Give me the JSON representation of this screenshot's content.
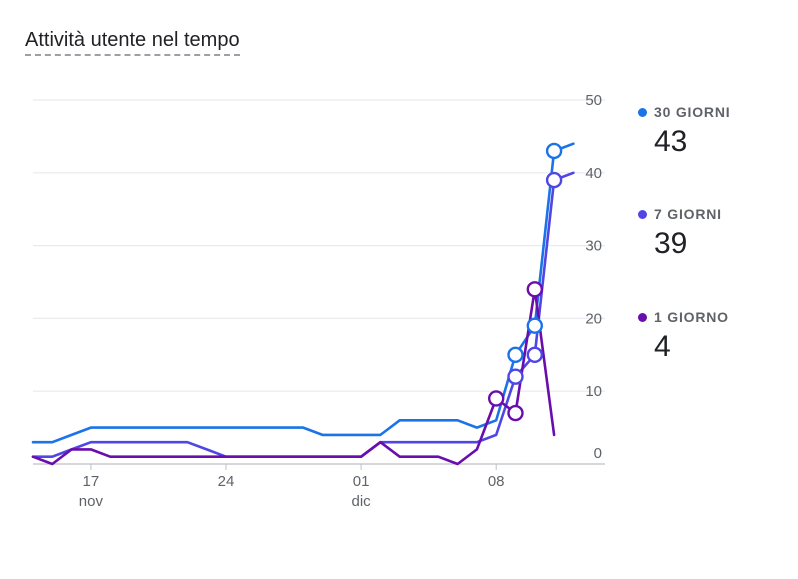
{
  "title": "Attività utente nel tempo",
  "legend": [
    {
      "label": "30 GIORNI",
      "value": "43",
      "color": "#1a73e8"
    },
    {
      "label": "7 GIORNI",
      "value": "39",
      "color": "#4f46e5"
    },
    {
      "label": "1 GIORNO",
      "value": "4",
      "color": "#6a0dad"
    }
  ],
  "chart_data": {
    "type": "line",
    "title": "Attività utente nel tempo",
    "x_start": "2024-11-14",
    "x_ticks": [
      {
        "date": "2024-11-17",
        "label": "17",
        "sublabel": "nov"
      },
      {
        "date": "2024-11-24",
        "label": "24",
        "sublabel": ""
      },
      {
        "date": "2024-12-01",
        "label": "01",
        "sublabel": "dic"
      },
      {
        "date": "2024-12-08",
        "label": "08",
        "sublabel": ""
      }
    ],
    "y_ticks": [
      0,
      10,
      20,
      30,
      40,
      50
    ],
    "ylim": [
      0,
      50
    ],
    "grid": true,
    "legend_position": "right",
    "series": [
      {
        "name": "30 GIORNI",
        "color": "#1a73e8",
        "values": [
          3,
          3,
          4,
          5,
          5,
          5,
          5,
          5,
          5,
          5,
          5,
          5,
          5,
          5,
          5,
          4,
          4,
          4,
          4,
          6,
          6,
          6,
          6,
          5,
          6,
          15,
          19,
          43,
          44
        ],
        "markers": [
          25,
          26,
          27
        ]
      },
      {
        "name": "7 GIORNI",
        "color": "#4f46e5",
        "values": [
          1,
          1,
          2,
          3,
          3,
          3,
          3,
          3,
          3,
          2,
          1,
          1,
          1,
          1,
          1,
          1,
          1,
          1,
          3,
          3,
          3,
          3,
          3,
          3,
          4,
          12,
          15,
          39,
          40
        ],
        "markers": [
          25,
          26,
          27
        ]
      },
      {
        "name": "1 GIORNO",
        "color": "#6a0dad",
        "values": [
          1,
          0,
          2,
          2,
          1,
          1,
          1,
          1,
          1,
          1,
          1,
          1,
          1,
          1,
          1,
          1,
          1,
          1,
          3,
          1,
          1,
          1,
          0,
          2,
          9,
          7,
          24,
          4
        ],
        "markers": [
          24,
          25,
          26
        ]
      }
    ]
  }
}
